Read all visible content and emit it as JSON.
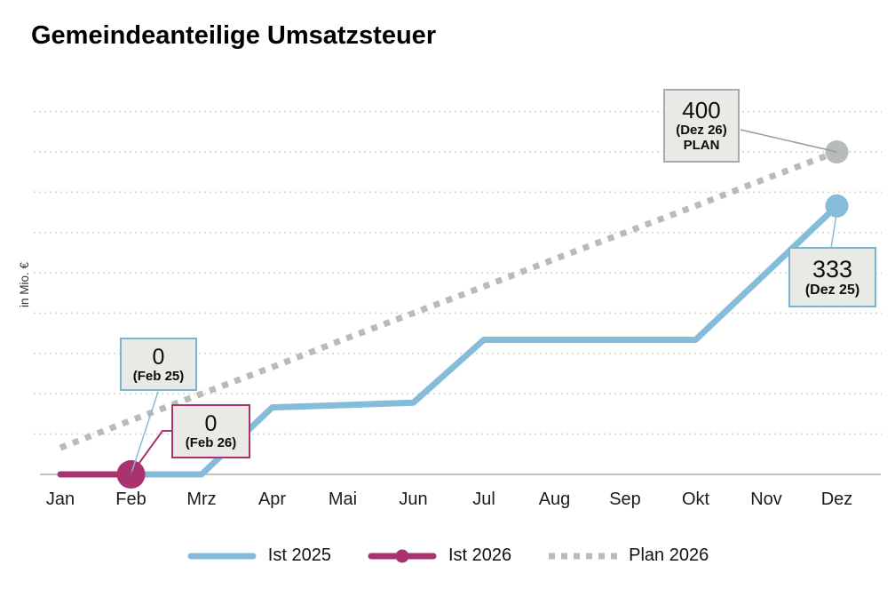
{
  "title": "Gemeindeanteilige Umsatzsteuer",
  "y_axis_label": "in Mio. €",
  "chart_data": {
    "type": "line",
    "title": "Gemeindeanteilige Umsatzsteuer",
    "ylabel": "in Mio. €",
    "xlabel": "",
    "categories": [
      "Jan",
      "Feb",
      "Mrz",
      "Apr",
      "Mai",
      "Jun",
      "Jul",
      "Aug",
      "Sep",
      "Okt",
      "Nov",
      "Dez"
    ],
    "series": [
      {
        "name": "Ist 2025",
        "color": "#85bcd9",
        "style": "solid",
        "marker_month": "Dez",
        "marker_value": 333,
        "values": [
          0,
          0,
          0,
          83,
          86,
          89,
          167,
          167,
          167,
          167,
          250,
          333
        ]
      },
      {
        "name": "Ist 2026",
        "color": "#a8336e",
        "style": "solid",
        "marker_month": "Feb",
        "marker_value": 0,
        "values": [
          0,
          0
        ]
      },
      {
        "name": "Plan 2026",
        "color": "#b6bbbb",
        "style": "dotted",
        "marker_month": "Dez",
        "marker_value": 400,
        "values": [
          33,
          67,
          100,
          133,
          167,
          200,
          233,
          267,
          300,
          333,
          367,
          400
        ]
      }
    ],
    "ylim": [
      0,
      450
    ],
    "grid_interval": 50,
    "grid": "dotted-horizontal",
    "legend_position": "bottom"
  },
  "annotations": [
    {
      "value": "0",
      "label": "(Feb 25)",
      "series": "Ist 2025"
    },
    {
      "value": "0",
      "label": "(Feb 26)",
      "series": "Ist 2026"
    },
    {
      "value": "400",
      "label": "(Dez 26)",
      "sublabel": "PLAN",
      "series": "Plan 2026"
    },
    {
      "value": "333",
      "label": "(Dez 25)",
      "series": "Ist 2025"
    }
  ],
  "colors": {
    "ist2025": "#85bcd9",
    "ist2026": "#a8336e",
    "plan": "#b6bbbb",
    "gridline": "#dcdcdc",
    "axis": "#c2c2c2",
    "box_fill": "#e9e9e5",
    "box_border_gray": "#a8acac",
    "leader_gray": "#9b9b9b",
    "text": "#111111"
  }
}
